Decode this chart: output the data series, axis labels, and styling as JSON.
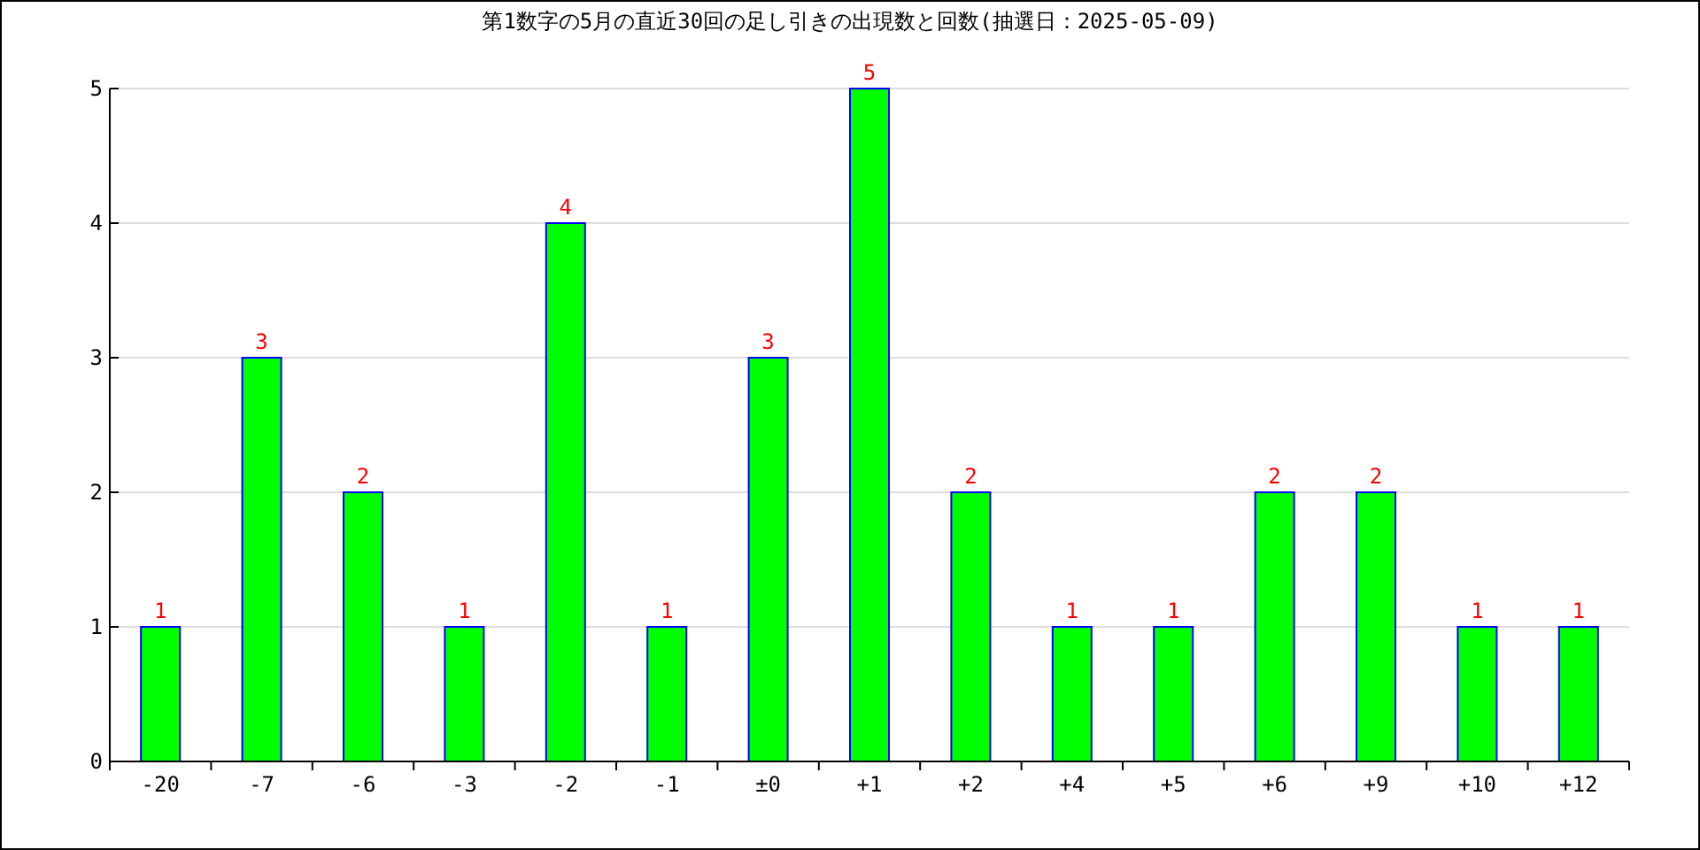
{
  "chart_data": {
    "type": "bar",
    "title": "第1数字の5月の直近30回の足し引きの出現数と回数(抽選日：2025-05-09)",
    "categories": [
      "-20",
      "-7",
      "-6",
      "-3",
      "-2",
      "-1",
      "±0",
      "+1",
      "+2",
      "+4",
      "+5",
      "+6",
      "+9",
      "+10",
      "+12"
    ],
    "values": [
      1,
      3,
      2,
      1,
      4,
      1,
      3,
      5,
      2,
      1,
      1,
      2,
      2,
      1,
      1
    ],
    "color": "#00ff00",
    "ylim": [
      0,
      5
    ],
    "yticks": [
      0,
      1,
      2,
      3,
      4,
      5
    ],
    "grid": "y",
    "data_labels": true
  }
}
